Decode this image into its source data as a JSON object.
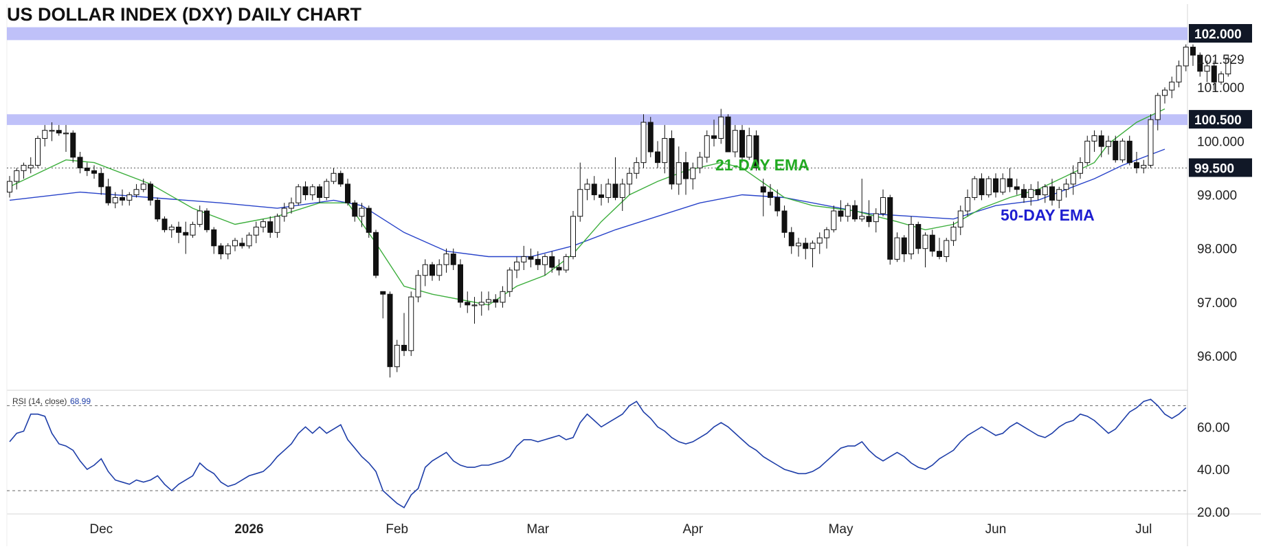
{
  "chart_data": {
    "type": "candlestick",
    "title": "US DOLLAR INDEX (DXY) DAILY CHART",
    "price_axis": {
      "range": [
        95.4,
        102.55
      ],
      "ticks": [
        "96.000",
        "97.000",
        "98.000",
        "99.000",
        "100.000",
        "101.000"
      ],
      "tick_values": [
        96,
        97,
        98,
        99,
        100,
        101
      ]
    },
    "x_axis": {
      "labels": [
        {
          "text": "Dec",
          "bar": 13,
          "bold": false
        },
        {
          "text": "2026",
          "bar": 34,
          "bold": true
        },
        {
          "text": "Feb",
          "bar": 55,
          "bold": false
        },
        {
          "text": "Mar",
          "bar": 75,
          "bold": false
        },
        {
          "text": "Apr",
          "bar": 97,
          "bold": false
        },
        {
          "text": "May",
          "bar": 118,
          "bold": false
        },
        {
          "text": "Jun",
          "bar": 140,
          "bold": false
        },
        {
          "text": "Jul",
          "bar": 161,
          "bold": false
        }
      ]
    },
    "resistance_zones": [
      {
        "low": 101.88,
        "high": 102.12,
        "label": "102.000"
      },
      {
        "low": 100.3,
        "high": 100.5,
        "label": "100.500"
      }
    ],
    "support_line": {
      "value": 99.5,
      "label": "99.500",
      "style": "dotted"
    },
    "last_price": {
      "value": 101.529,
      "label": "101.529"
    },
    "ohlc": [
      [
        99.05,
        99.35,
        98.95,
        99.25
      ],
      [
        99.25,
        99.5,
        99.1,
        99.45
      ],
      [
        99.45,
        99.6,
        99.3,
        99.55
      ],
      [
        99.5,
        99.7,
        99.4,
        99.55
      ],
      [
        99.55,
        100.1,
        99.5,
        100.05
      ],
      [
        100.05,
        100.3,
        99.9,
        100.2
      ],
      [
        100.2,
        100.35,
        100.0,
        100.2
      ],
      [
        100.2,
        100.3,
        100.1,
        100.15
      ],
      [
        100.15,
        100.3,
        99.8,
        100.15
      ],
      [
        100.15,
        100.2,
        99.6,
        99.7
      ],
      [
        99.7,
        99.8,
        99.4,
        99.5
      ],
      [
        99.5,
        99.6,
        99.35,
        99.45
      ],
      [
        99.45,
        99.55,
        99.3,
        99.4
      ],
      [
        99.4,
        99.5,
        99.0,
        99.15
      ],
      [
        99.15,
        99.3,
        98.8,
        98.85
      ],
      [
        98.85,
        99.05,
        98.75,
        98.95
      ],
      [
        98.95,
        99.1,
        98.8,
        98.9
      ],
      [
        98.9,
        99.05,
        98.8,
        99.0
      ],
      [
        99.0,
        99.2,
        98.95,
        99.1
      ],
      [
        99.1,
        99.3,
        99.05,
        99.2
      ],
      [
        99.2,
        99.25,
        98.8,
        98.9
      ],
      [
        98.9,
        98.95,
        98.5,
        98.55
      ],
      [
        98.55,
        98.6,
        98.3,
        98.35
      ],
      [
        98.35,
        98.45,
        98.2,
        98.4
      ],
      [
        98.4,
        98.5,
        98.1,
        98.3
      ],
      [
        98.3,
        98.5,
        97.9,
        98.25
      ],
      [
        98.25,
        98.5,
        98.2,
        98.45
      ],
      [
        98.45,
        98.8,
        98.4,
        98.7
      ],
      [
        98.7,
        98.75,
        98.3,
        98.35
      ],
      [
        98.35,
        98.4,
        97.9,
        98.05
      ],
      [
        98.05,
        98.1,
        97.8,
        97.9
      ],
      [
        97.9,
        98.1,
        97.8,
        98.05
      ],
      [
        98.05,
        98.2,
        97.95,
        98.15
      ],
      [
        98.1,
        98.2,
        98.0,
        98.05
      ],
      [
        98.05,
        98.3,
        98.0,
        98.25
      ],
      [
        98.25,
        98.5,
        98.1,
        98.4
      ],
      [
        98.4,
        98.55,
        98.3,
        98.5
      ],
      [
        98.5,
        98.6,
        98.2,
        98.3
      ],
      [
        98.3,
        98.65,
        98.2,
        98.6
      ],
      [
        98.6,
        98.85,
        98.5,
        98.75
      ],
      [
        98.75,
        98.95,
        98.65,
        98.85
      ],
      [
        98.85,
        99.2,
        98.8,
        99.15
      ],
      [
        99.15,
        99.25,
        98.9,
        99.0
      ],
      [
        99.0,
        99.2,
        98.9,
        99.15
      ],
      [
        99.15,
        99.2,
        98.85,
        98.95
      ],
      [
        98.95,
        99.3,
        98.9,
        99.25
      ],
      [
        99.25,
        99.5,
        99.2,
        99.4
      ],
      [
        99.4,
        99.45,
        99.15,
        99.2
      ],
      [
        99.2,
        99.3,
        98.8,
        98.85
      ],
      [
        98.85,
        98.9,
        98.5,
        98.6
      ],
      [
        98.6,
        98.85,
        98.4,
        98.75
      ],
      [
        98.75,
        98.8,
        98.2,
        98.3
      ],
      [
        98.3,
        98.35,
        97.45,
        97.5
      ],
      [
        97.2,
        97.2,
        96.7,
        97.15
      ],
      [
        97.15,
        97.2,
        95.6,
        95.8
      ],
      [
        95.8,
        96.3,
        95.7,
        96.2
      ],
      [
        96.2,
        96.8,
        96.0,
        96.1
      ],
      [
        96.1,
        97.2,
        96.0,
        97.1
      ],
      [
        97.1,
        97.6,
        97.0,
        97.5
      ],
      [
        97.5,
        97.8,
        97.3,
        97.7
      ],
      [
        97.7,
        97.75,
        97.4,
        97.5
      ],
      [
        97.5,
        97.8,
        97.4,
        97.7
      ],
      [
        97.7,
        98.0,
        97.55,
        97.9
      ],
      [
        97.9,
        98.0,
        97.6,
        97.7
      ],
      [
        97.7,
        97.8,
        96.9,
        97.0
      ],
      [
        97.0,
        97.2,
        96.8,
        96.95
      ],
      [
        96.95,
        97.1,
        96.6,
        96.95
      ],
      [
        96.95,
        97.2,
        96.75,
        97.0
      ],
      [
        97.0,
        97.2,
        96.85,
        97.05
      ],
      [
        97.05,
        97.15,
        96.9,
        97.0
      ],
      [
        97.0,
        97.3,
        96.9,
        97.2
      ],
      [
        97.2,
        97.65,
        97.1,
        97.6
      ],
      [
        97.6,
        97.85,
        97.45,
        97.75
      ],
      [
        97.75,
        98.05,
        97.6,
        97.85
      ],
      [
        97.85,
        98.0,
        97.65,
        97.8
      ],
      [
        97.8,
        97.95,
        97.6,
        97.7
      ],
      [
        97.7,
        97.9,
        97.5,
        97.85
      ],
      [
        97.85,
        97.95,
        97.55,
        97.65
      ],
      [
        97.65,
        97.8,
        97.5,
        97.6
      ],
      [
        97.6,
        97.9,
        97.55,
        97.85
      ],
      [
        97.85,
        98.7,
        97.8,
        98.6
      ],
      [
        98.6,
        99.6,
        98.5,
        99.1
      ],
      [
        99.1,
        99.3,
        98.9,
        99.2
      ],
      [
        99.2,
        99.35,
        98.9,
        99.0
      ],
      [
        99.0,
        99.2,
        98.8,
        98.95
      ],
      [
        98.95,
        99.3,
        98.85,
        99.2
      ],
      [
        99.2,
        99.7,
        98.9,
        98.95
      ],
      [
        98.95,
        99.3,
        98.7,
        99.2
      ],
      [
        99.2,
        99.5,
        99.0,
        99.4
      ],
      [
        99.4,
        99.7,
        99.3,
        99.6
      ],
      [
        99.6,
        100.5,
        99.5,
        100.35
      ],
      [
        100.35,
        100.45,
        99.7,
        99.8
      ],
      [
        99.8,
        100.0,
        99.5,
        99.6
      ],
      [
        99.6,
        100.3,
        99.4,
        100.05
      ],
      [
        100.05,
        100.2,
        99.1,
        99.2
      ],
      [
        99.2,
        99.9,
        99.0,
        99.6
      ],
      [
        99.6,
        99.8,
        99.0,
        99.3
      ],
      [
        99.3,
        99.6,
        99.1,
        99.5
      ],
      [
        99.5,
        99.8,
        99.4,
        99.7
      ],
      [
        99.7,
        100.2,
        99.6,
        100.1
      ],
      [
        100.1,
        100.4,
        99.9,
        100.05
      ],
      [
        100.05,
        100.6,
        99.95,
        100.45
      ],
      [
        100.45,
        100.5,
        99.8,
        99.8
      ],
      [
        99.8,
        100.3,
        99.7,
        100.2
      ],
      [
        100.2,
        100.3,
        99.6,
        99.7
      ],
      [
        99.7,
        100.25,
        99.65,
        100.1
      ],
      [
        100.1,
        100.2,
        99.45,
        99.5
      ],
      [
        99.15,
        99.3,
        98.6,
        99.05
      ],
      [
        99.05,
        99.2,
        98.8,
        98.95
      ],
      [
        98.95,
        99.1,
        98.6,
        98.7
      ],
      [
        98.7,
        98.8,
        98.2,
        98.3
      ],
      [
        98.3,
        98.4,
        97.9,
        98.05
      ],
      [
        98.05,
        98.2,
        97.85,
        98.1
      ],
      [
        98.1,
        98.2,
        97.8,
        98.0
      ],
      [
        98.0,
        98.15,
        97.65,
        98.1
      ],
      [
        98.1,
        98.3,
        97.9,
        98.2
      ],
      [
        98.2,
        98.4,
        98.0,
        98.35
      ],
      [
        98.35,
        98.8,
        98.3,
        98.7
      ],
      [
        98.7,
        98.9,
        98.5,
        98.6
      ],
      [
        98.6,
        98.85,
        98.5,
        98.8
      ],
      [
        98.8,
        98.9,
        98.5,
        98.55
      ],
      [
        98.55,
        99.3,
        98.5,
        98.6
      ],
      [
        98.6,
        98.9,
        98.4,
        98.5
      ],
      [
        98.5,
        98.75,
        98.3,
        98.65
      ],
      [
        98.65,
        99.1,
        98.6,
        98.95
      ],
      [
        98.95,
        99.0,
        97.7,
        97.8
      ],
      [
        97.8,
        98.3,
        97.75,
        98.2
      ],
      [
        98.2,
        98.25,
        97.75,
        97.9
      ],
      [
        97.9,
        98.6,
        97.8,
        98.45
      ],
      [
        98.45,
        98.5,
        97.9,
        98.0
      ],
      [
        98.0,
        98.3,
        97.65,
        98.25
      ],
      [
        98.25,
        98.35,
        97.85,
        97.95
      ],
      [
        97.95,
        98.2,
        97.8,
        97.85
      ],
      [
        97.85,
        98.2,
        97.75,
        98.15
      ],
      [
        98.15,
        98.5,
        98.05,
        98.4
      ],
      [
        98.4,
        98.8,
        98.25,
        98.7
      ],
      [
        98.7,
        99.1,
        98.6,
        98.95
      ],
      [
        98.95,
        99.35,
        98.9,
        99.3
      ],
      [
        99.3,
        99.4,
        98.9,
        99.0
      ],
      [
        99.0,
        99.35,
        98.95,
        99.3
      ],
      [
        99.3,
        99.4,
        98.95,
        99.05
      ],
      [
        99.05,
        99.4,
        99.0,
        99.3
      ],
      [
        99.3,
        99.5,
        99.05,
        99.15
      ],
      [
        99.15,
        99.3,
        99.0,
        99.1
      ],
      [
        99.1,
        99.2,
        98.85,
        98.95
      ],
      [
        98.95,
        99.2,
        98.8,
        99.1
      ],
      [
        99.1,
        99.25,
        98.9,
        99.0
      ],
      [
        99.0,
        99.2,
        98.85,
        99.15
      ],
      [
        99.15,
        99.3,
        98.8,
        98.9
      ],
      [
        98.9,
        99.15,
        98.75,
        99.1
      ],
      [
        99.1,
        99.3,
        98.95,
        99.2
      ],
      [
        99.2,
        99.55,
        99.0,
        99.4
      ],
      [
        99.4,
        99.7,
        99.3,
        99.6
      ],
      [
        99.6,
        100.1,
        99.55,
        100.0
      ],
      [
        100.0,
        100.2,
        99.8,
        100.1
      ],
      [
        100.1,
        100.2,
        99.7,
        99.9
      ],
      [
        99.9,
        100.1,
        99.75,
        100.0
      ],
      [
        100.0,
        100.1,
        99.6,
        99.65
      ],
      [
        99.65,
        100.05,
        99.6,
        100.0
      ],
      [
        100.0,
        100.1,
        99.55,
        99.6
      ],
      [
        99.6,
        99.8,
        99.4,
        99.5
      ],
      [
        99.5,
        99.65,
        99.4,
        99.55
      ],
      [
        99.55,
        100.5,
        99.5,
        100.4
      ],
      [
        100.4,
        100.9,
        100.2,
        100.85
      ],
      [
        100.85,
        101.0,
        100.7,
        100.95
      ],
      [
        100.95,
        101.2,
        100.8,
        101.1
      ],
      [
        101.1,
        101.5,
        101.0,
        101.4
      ],
      [
        101.4,
        101.8,
        101.3,
        101.75
      ],
      [
        101.75,
        101.8,
        101.4,
        101.6
      ],
      [
        101.6,
        101.65,
        101.2,
        101.3
      ],
      [
        101.3,
        101.5,
        101.1,
        101.4
      ],
      [
        101.4,
        101.5,
        100.95,
        101.1
      ],
      [
        101.1,
        101.3,
        101.05,
        101.25
      ],
      [
        101.25,
        101.6,
        101.2,
        101.529
      ]
    ],
    "ema21": [
      [
        0,
        99.15
      ],
      [
        8,
        99.65
      ],
      [
        12,
        99.6
      ],
      [
        20,
        99.2
      ],
      [
        26,
        98.75
      ],
      [
        32,
        98.45
      ],
      [
        38,
        98.6
      ],
      [
        44,
        98.85
      ],
      [
        48,
        98.85
      ],
      [
        52,
        98.1
      ],
      [
        56,
        97.3
      ],
      [
        60,
        97.15
      ],
      [
        64,
        97.05
      ],
      [
        68,
        96.95
      ],
      [
        72,
        97.3
      ],
      [
        76,
        97.5
      ],
      [
        80,
        97.9
      ],
      [
        84,
        98.5
      ],
      [
        88,
        99.0
      ],
      [
        92,
        99.25
      ],
      [
        96,
        99.45
      ],
      [
        101,
        99.6
      ],
      [
        104,
        99.5
      ],
      [
        110,
        98.95
      ],
      [
        114,
        98.8
      ],
      [
        120,
        98.7
      ],
      [
        126,
        98.5
      ],
      [
        130,
        98.35
      ],
      [
        134,
        98.45
      ],
      [
        138,
        98.75
      ],
      [
        142,
        98.95
      ],
      [
        146,
        99.1
      ],
      [
        150,
        99.35
      ],
      [
        154,
        99.6
      ],
      [
        156,
        99.95
      ],
      [
        160,
        100.35
      ],
      [
        164,
        100.6
      ]
    ],
    "ema50": [
      [
        0,
        98.9
      ],
      [
        10,
        99.05
      ],
      [
        20,
        98.95
      ],
      [
        30,
        98.85
      ],
      [
        38,
        98.75
      ],
      [
        46,
        98.9
      ],
      [
        50,
        98.8
      ],
      [
        56,
        98.3
      ],
      [
        62,
        97.95
      ],
      [
        68,
        97.85
      ],
      [
        74,
        97.85
      ],
      [
        80,
        98.05
      ],
      [
        86,
        98.35
      ],
      [
        92,
        98.6
      ],
      [
        98,
        98.85
      ],
      [
        104,
        99.0
      ],
      [
        110,
        98.95
      ],
      [
        116,
        98.8
      ],
      [
        122,
        98.65
      ],
      [
        128,
        98.6
      ],
      [
        134,
        98.55
      ],
      [
        140,
        98.8
      ],
      [
        146,
        98.9
      ],
      [
        150,
        99.1
      ],
      [
        154,
        99.3
      ],
      [
        158,
        99.55
      ],
      [
        164,
        99.85
      ]
    ],
    "annotations": [
      {
        "text": "21-DAY EMA",
        "color": "#22aa22"
      },
      {
        "text": "50-DAY EMA",
        "color": "#1d1dd0"
      }
    ],
    "rsi": {
      "label": "RSI (14, close)",
      "value": "68.99",
      "range": [
        20,
        74
      ],
      "ticks": [
        "20.00",
        "40.00",
        "60.00"
      ],
      "tick_values": [
        20,
        40,
        60
      ],
      "levels": [
        70,
        30
      ],
      "values": [
        53,
        57,
        58,
        66,
        66,
        65,
        57,
        52,
        51,
        49,
        44,
        40,
        42,
        45,
        39,
        35,
        34,
        33,
        35,
        34,
        35,
        37,
        33,
        30,
        33,
        35,
        37,
        43,
        40,
        38,
        34,
        32,
        33,
        35,
        37,
        38,
        39,
        42,
        46,
        49,
        52,
        57,
        60,
        57,
        60,
        57,
        59,
        61,
        54,
        50,
        46,
        43,
        39,
        30,
        27,
        24,
        22,
        28,
        31,
        41,
        44,
        46,
        48,
        44,
        42,
        41,
        41,
        42,
        42,
        43,
        44,
        46,
        51,
        54,
        54,
        53,
        54,
        55,
        56,
        54,
        55,
        62,
        66,
        63,
        60,
        62,
        64,
        66,
        70,
        72,
        67,
        64,
        60,
        58,
        55,
        53,
        52,
        53,
        55,
        57,
        60,
        62,
        60,
        57,
        54,
        51,
        49,
        46,
        44,
        42,
        40,
        39,
        38,
        38,
        39,
        41,
        44,
        47,
        50,
        51,
        51,
        53,
        49,
        46,
        44,
        46,
        48,
        46,
        43,
        41,
        40,
        42,
        45,
        47,
        49,
        53,
        56,
        58,
        60,
        58,
        56,
        57,
        60,
        62,
        60,
        58,
        56,
        55,
        57,
        60,
        62,
        63,
        66,
        65,
        63,
        60,
        57,
        59,
        63,
        67,
        69,
        72,
        73,
        70,
        66,
        64,
        66,
        68.99
      ]
    }
  }
}
